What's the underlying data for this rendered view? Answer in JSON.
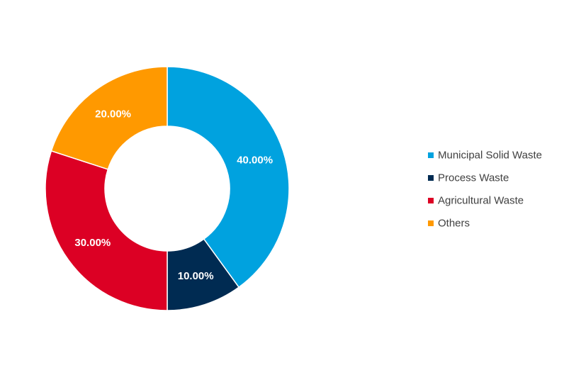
{
  "chart_data": {
    "type": "pie",
    "donut": true,
    "categories": [
      "Municipal Solid Waste",
      "Process Waste",
      "Agricultural Waste",
      "Others"
    ],
    "values": [
      40,
      10,
      30,
      20
    ],
    "data_labels": [
      "40.00%",
      "10.00%",
      "30.00%",
      "20.00%"
    ],
    "colors": [
      "#00a2df",
      "#002b52",
      "#dc0024",
      "#ff9900"
    ],
    "legend_position": "right"
  }
}
